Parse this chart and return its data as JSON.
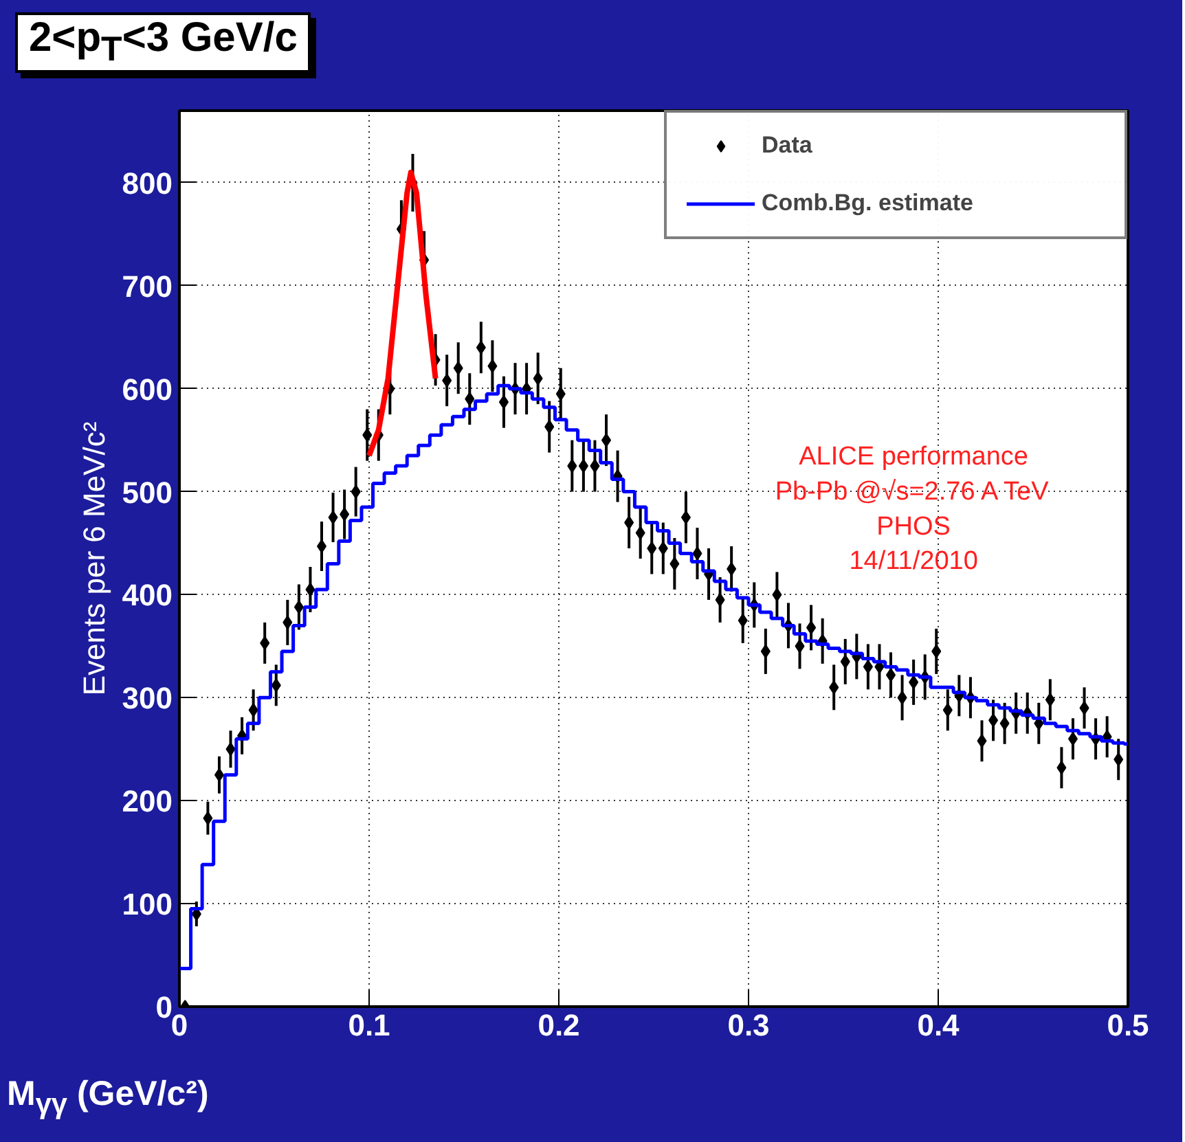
{
  "chart_data": {
    "type": "scatter",
    "title": "2<p$_{T}$<3 GeV/c",
    "xlabel": "M$_{γγ}$ (GeV/c²)",
    "ylabel": "Events per 6 MeV/c²",
    "xlim": [
      0,
      0.5
    ],
    "ylim": [
      0,
      870
    ],
    "xticks": [
      0,
      0.1,
      0.2,
      0.3,
      0.4,
      0.5
    ],
    "yticks": [
      0,
      100,
      200,
      300,
      400,
      500,
      600,
      700,
      800
    ],
    "grid": true,
    "legend": "top right",
    "annotations": [
      "ALICE performance",
      "Pb-Pb @√s=2.76 A TeV",
      "PHOS",
      "14/11/2010"
    ],
    "series": [
      {
        "name": "Data",
        "marker": "diamond",
        "color": "#000000",
        "x": [
          0.003,
          0.009,
          0.015,
          0.021,
          0.027,
          0.033,
          0.039,
          0.045,
          0.051,
          0.057,
          0.063,
          0.069,
          0.075,
          0.081,
          0.087,
          0.093,
          0.099,
          0.105,
          0.111,
          0.117,
          0.123,
          0.129,
          0.135,
          0.141,
          0.147,
          0.153,
          0.159,
          0.165,
          0.171,
          0.177,
          0.183,
          0.189,
          0.195,
          0.201,
          0.207,
          0.213,
          0.219,
          0.225,
          0.231,
          0.237,
          0.243,
          0.249,
          0.255,
          0.261,
          0.267,
          0.273,
          0.279,
          0.285,
          0.291,
          0.297,
          0.303,
          0.309,
          0.315,
          0.321,
          0.327,
          0.333,
          0.339,
          0.345,
          0.351,
          0.357,
          0.363,
          0.369,
          0.375,
          0.381,
          0.387,
          0.393,
          0.399,
          0.405,
          0.411,
          0.417,
          0.423,
          0.429,
          0.435,
          0.441,
          0.447,
          0.453,
          0.459,
          0.465,
          0.471,
          0.477,
          0.483,
          0.489,
          0.495
        ],
        "values": [
          0,
          90,
          183,
          225,
          250,
          263,
          288,
          353,
          312,
          373,
          388,
          405,
          447,
          475,
          478,
          500,
          555,
          555,
          600,
          755,
          800,
          725,
          628,
          608,
          620,
          590,
          640,
          622,
          587,
          600,
          600,
          610,
          563,
          595,
          525,
          525,
          525,
          550,
          515,
          470,
          460,
          445,
          445,
          430,
          475,
          440,
          420,
          395,
          425,
          375,
          390,
          345,
          400,
          370,
          350,
          368,
          355,
          310,
          335,
          340,
          330,
          330,
          322,
          300,
          315,
          320,
          345,
          288,
          302,
          300,
          258,
          278,
          275,
          285,
          285,
          275,
          298,
          232,
          260,
          290,
          260,
          262,
          240
        ],
        "errors": [
          null,
          12,
          16,
          18,
          18,
          18,
          20,
          20,
          20,
          22,
          22,
          22,
          24,
          24,
          24,
          24,
          25,
          25,
          25,
          28,
          28,
          28,
          25,
          25,
          25,
          25,
          25,
          25,
          25,
          25,
          25,
          25,
          25,
          25,
          25,
          25,
          25,
          25,
          25,
          25,
          25,
          25,
          25,
          25,
          25,
          25,
          25,
          22,
          22,
          22,
          22,
          22,
          22,
          22,
          22,
          22,
          22,
          22,
          22,
          22,
          22,
          22,
          22,
          22,
          22,
          22,
          22,
          20,
          20,
          20,
          20,
          20,
          20,
          20,
          20,
          20,
          20,
          20,
          20,
          20,
          20,
          20,
          20
        ]
      },
      {
        "name": "Comb.Bg. estimate",
        "type": "step",
        "color": "#0000ff",
        "x": [
          0,
          0.006,
          0.012,
          0.018,
          0.024,
          0.03,
          0.036,
          0.042,
          0.048,
          0.054,
          0.06,
          0.066,
          0.072,
          0.078,
          0.084,
          0.09,
          0.096,
          0.102,
          0.108,
          0.114,
          0.12,
          0.126,
          0.132,
          0.138,
          0.144,
          0.15,
          0.156,
          0.162,
          0.168,
          0.174,
          0.18,
          0.186,
          0.192,
          0.198,
          0.204,
          0.21,
          0.216,
          0.222,
          0.228,
          0.234,
          0.24,
          0.246,
          0.252,
          0.258,
          0.264,
          0.27,
          0.276,
          0.282,
          0.288,
          0.294,
          0.3,
          0.306,
          0.312,
          0.318,
          0.324,
          0.33,
          0.336,
          0.342,
          0.348,
          0.354,
          0.36,
          0.366,
          0.372,
          0.378,
          0.384,
          0.39,
          0.396,
          0.402,
          0.408,
          0.414,
          0.42,
          0.426,
          0.432,
          0.438,
          0.444,
          0.45,
          0.456,
          0.462,
          0.468,
          0.474,
          0.48,
          0.486,
          0.492,
          0.498,
          0.5
        ],
        "values": [
          37,
          95,
          138,
          180,
          225,
          260,
          275,
          300,
          325,
          345,
          370,
          388,
          405,
          430,
          452,
          472,
          485,
          508,
          518,
          525,
          535,
          545,
          555,
          565,
          573,
          580,
          588,
          595,
          603,
          600,
          596,
          590,
          582,
          570,
          560,
          550,
          540,
          528,
          512,
          500,
          485,
          470,
          462,
          450,
          440,
          432,
          423,
          413,
          405,
          397,
          390,
          383,
          377,
          370,
          362,
          355,
          352,
          348,
          345,
          343,
          338,
          335,
          330,
          327,
          322,
          320,
          310,
          310,
          305,
          300,
          297,
          293,
          290,
          287,
          283,
          280,
          275,
          272,
          268,
          265,
          262,
          258,
          256,
          255,
          255
        ]
      },
      {
        "type": "line",
        "color": "#ff0000",
        "x": [
          0.1,
          0.105,
          0.11,
          0.115,
          0.12,
          0.122,
          0.125,
          0.13,
          0.135
        ],
        "values": [
          535,
          560,
          610,
          700,
          790,
          810,
          790,
          690,
          610
        ]
      }
    ]
  }
}
